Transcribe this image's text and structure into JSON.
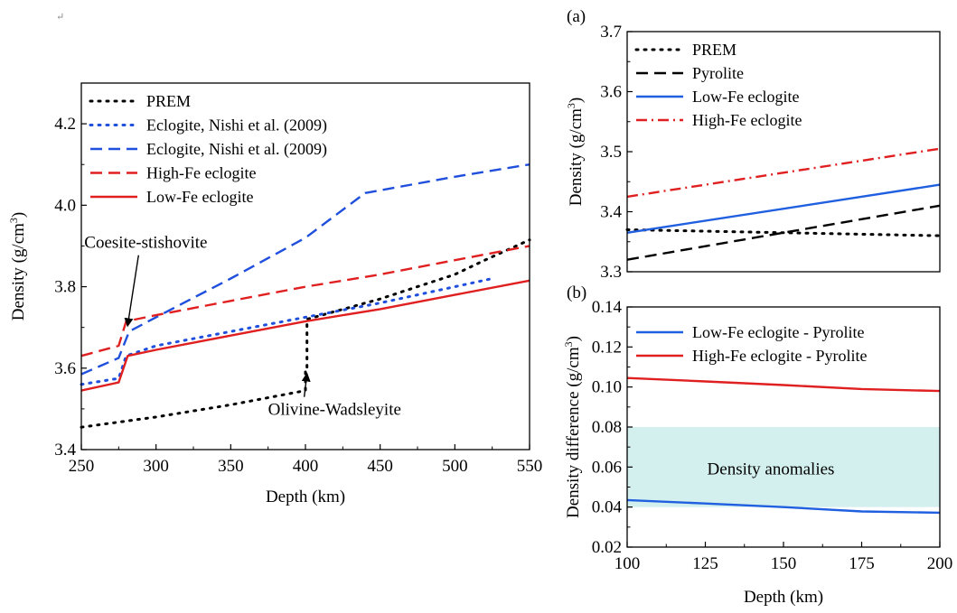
{
  "corner_mark": "↵",
  "chart_data": [
    {
      "type": "line",
      "panel_label": "",
      "xlabel": "Depth (km)",
      "ylabel": "Density (g/cm",
      "ylabel_sup": "3",
      "ylabel_tail": ")",
      "xlim": [
        250,
        550
      ],
      "ylim": [
        3.4,
        4.3
      ],
      "xticks": [
        250,
        300,
        350,
        400,
        450,
        500,
        550
      ],
      "xtick_labels": [
        "250",
        "300",
        "350",
        "400",
        "450",
        "500",
        "550"
      ],
      "yticks": [
        3.4,
        3.6,
        3.8,
        4.0,
        4.2
      ],
      "ytick_labels": [
        "3.4",
        "3.6",
        "3.8",
        "4.0",
        "4.2"
      ],
      "legend_position": "top-left",
      "series": [
        {
          "name": "PREM",
          "color": "#000000",
          "style": "dotted",
          "x": [
            250,
            300,
            350,
            400,
            400,
            401,
            401,
            450,
            500,
            520,
            550
          ],
          "y": [
            3.455,
            3.48,
            3.51,
            3.545,
            3.6,
            3.6,
            3.72,
            3.77,
            3.83,
            3.865,
            3.915
          ]
        },
        {
          "name": "Eclogite, Nishi et al. (2009)",
          "color": "#1f4fdc",
          "style": "dotted",
          "x": [
            250,
            275,
            280,
            300,
            350,
            400,
            450,
            500,
            525
          ],
          "y": [
            3.56,
            3.575,
            3.63,
            3.655,
            3.69,
            3.725,
            3.76,
            3.8,
            3.82
          ]
        },
        {
          "name": "Eclogite, Nishi et al. (2009)",
          "color": "#1f4fdc",
          "style": "dashed",
          "x": [
            250,
            275,
            282,
            300,
            350,
            400,
            440,
            500,
            550
          ],
          "y": [
            3.585,
            3.625,
            3.69,
            3.725,
            3.82,
            3.92,
            4.03,
            4.07,
            4.1
          ]
        },
        {
          "name": "High-Fe eclogite",
          "color": "#e02020",
          "style": "dashed",
          "x": [
            250,
            275,
            280,
            300,
            350,
            400,
            450,
            500,
            550
          ],
          "y": [
            3.63,
            3.655,
            3.715,
            3.73,
            3.765,
            3.8,
            3.83,
            3.865,
            3.9
          ]
        },
        {
          "name": "Low-Fe eclogite",
          "color": "#e02020",
          "style": "solid",
          "x": [
            250,
            275,
            281,
            300,
            350,
            400,
            450,
            500,
            550
          ],
          "y": [
            3.545,
            3.565,
            3.63,
            3.645,
            3.68,
            3.715,
            3.745,
            3.78,
            3.815
          ]
        }
      ],
      "annotations": [
        {
          "text": "Coesite-stishovite",
          "x": 252,
          "y": 3.895,
          "arrow_to": [
            281,
            3.705
          ]
        },
        {
          "text": "Olivine-Wadsleyite",
          "x": 375,
          "y": 3.485,
          "arrow_to": [
            401,
            3.585
          ]
        }
      ]
    },
    {
      "type": "line",
      "panel_label": "(a)",
      "xlabel": "",
      "ylabel": "Density (g/cm",
      "ylabel_sup": "3",
      "ylabel_tail": ")",
      "xlim": [
        100,
        200
      ],
      "ylim": [
        3.3,
        3.7
      ],
      "yticks": [
        3.3,
        3.4,
        3.5,
        3.6,
        3.7
      ],
      "ytick_labels": [
        "3.3",
        "3.4",
        "3.5",
        "3.6",
        "3.7"
      ],
      "legend_position": "top-left",
      "series": [
        {
          "name": "PREM",
          "color": "#000000",
          "style": "dotted",
          "x": [
            100,
            200
          ],
          "y": [
            3.37,
            3.36
          ]
        },
        {
          "name": "Pyrolite",
          "color": "#000000",
          "style": "dashed",
          "x": [
            100,
            200
          ],
          "y": [
            3.32,
            3.41
          ]
        },
        {
          "name": "Low-Fe eclogite",
          "color": "#1f5fe0",
          "style": "solid",
          "x": [
            100,
            200
          ],
          "y": [
            3.365,
            3.445
          ]
        },
        {
          "name": "High-Fe eclogite",
          "color": "#e02020",
          "style": "dashdot",
          "x": [
            100,
            200
          ],
          "y": [
            3.425,
            3.505
          ]
        }
      ]
    },
    {
      "type": "line",
      "panel_label": "(b)",
      "xlabel": "Depth (km)",
      "ylabel": "Density difference (g/cm",
      "ylabel_sup": "3",
      "ylabel_tail": ")",
      "xlim": [
        100,
        200
      ],
      "ylim": [
        0.02,
        0.14
      ],
      "xticks": [
        100,
        125,
        150,
        175,
        200
      ],
      "xtick_labels": [
        "100",
        "125",
        "150",
        "175",
        "200"
      ],
      "yticks": [
        0.02,
        0.04,
        0.06,
        0.08,
        0.1,
        0.12,
        0.14
      ],
      "ytick_labels": [
        "0.02",
        "0.04",
        "0.06",
        "0.08",
        "0.10",
        "0.12",
        "0.14"
      ],
      "legend_position": "top-left",
      "band": {
        "label": "Density anomalies",
        "y": [
          0.04,
          0.08
        ],
        "color": "#d3f0ee"
      },
      "series": [
        {
          "name": "Low-Fe eclogite - Pyrolite",
          "color": "#1f5fe0",
          "style": "solid",
          "x": [
            100,
            125,
            150,
            175,
            200
          ],
          "y": [
            0.0435,
            0.0418,
            0.04,
            0.0378,
            0.0372
          ]
        },
        {
          "name": "High-Fe eclogite - Pyrolite",
          "color": "#e02020",
          "style": "solid",
          "x": [
            100,
            125,
            150,
            175,
            200
          ],
          "y": [
            0.1045,
            0.1028,
            0.101,
            0.099,
            0.098
          ]
        }
      ]
    }
  ]
}
